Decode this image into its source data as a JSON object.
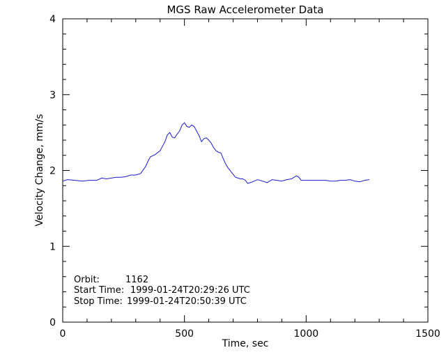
{
  "chart_data": {
    "type": "line",
    "title": "MGS Raw Accelerometer Data",
    "xlabel": "Time, sec",
    "ylabel": "Velocity Change, mm/s",
    "xlim": [
      0,
      1500
    ],
    "ylim": [
      0,
      4
    ],
    "xticks": [
      0,
      500,
      1000,
      1500
    ],
    "yticks": [
      0,
      1,
      2,
      3,
      4
    ],
    "xtick_labels": [
      "0",
      "500",
      "1000",
      "1500"
    ],
    "ytick_labels": [
      "0",
      "1",
      "2",
      "3",
      "4"
    ],
    "grid": false,
    "series_color": "#1a1ad2",
    "annotations": [
      {
        "label": "Orbit:",
        "value": "1162"
      },
      {
        "label": "Start Time:",
        "value": "1999-01-24T20:29:26 UTC"
      },
      {
        "label": "Stop Time:",
        "value": "1999-01-24T20:50:39 UTC"
      }
    ],
    "series": [
      {
        "x": [
          0,
          20,
          50,
          80,
          110,
          140,
          160,
          180,
          200,
          220,
          240,
          260,
          280,
          300,
          320,
          340,
          350,
          360,
          380,
          400,
          420,
          430,
          440,
          450,
          460,
          470,
          480,
          490,
          500,
          510,
          520,
          530,
          540,
          550,
          560,
          570,
          580,
          590,
          600,
          610,
          620,
          630,
          640,
          650,
          660,
          670,
          680,
          690,
          700,
          710,
          720,
          730,
          740,
          750,
          760,
          780,
          800,
          820,
          840,
          860,
          880,
          900,
          920,
          940,
          960,
          970,
          980,
          1000,
          1020,
          1040,
          1060,
          1080,
          1100,
          1120,
          1140,
          1160,
          1180,
          1200,
          1220,
          1240,
          1260
        ],
        "y": [
          1.86,
          1.88,
          1.87,
          1.86,
          1.87,
          1.87,
          1.9,
          1.89,
          1.9,
          1.91,
          1.91,
          1.92,
          1.94,
          1.94,
          1.96,
          2.05,
          2.12,
          2.18,
          2.21,
          2.26,
          2.38,
          2.47,
          2.5,
          2.44,
          2.43,
          2.48,
          2.52,
          2.6,
          2.63,
          2.58,
          2.57,
          2.6,
          2.58,
          2.52,
          2.46,
          2.38,
          2.42,
          2.43,
          2.4,
          2.36,
          2.3,
          2.26,
          2.24,
          2.23,
          2.15,
          2.08,
          2.03,
          1.99,
          1.95,
          1.91,
          1.9,
          1.89,
          1.89,
          1.87,
          1.83,
          1.85,
          1.88,
          1.86,
          1.84,
          1.88,
          1.87,
          1.86,
          1.88,
          1.89,
          1.93,
          1.91,
          1.87,
          1.87,
          1.87,
          1.87,
          1.87,
          1.87,
          1.86,
          1.86,
          1.87,
          1.87,
          1.88,
          1.86,
          1.85,
          1.87,
          1.88
        ]
      }
    ]
  }
}
